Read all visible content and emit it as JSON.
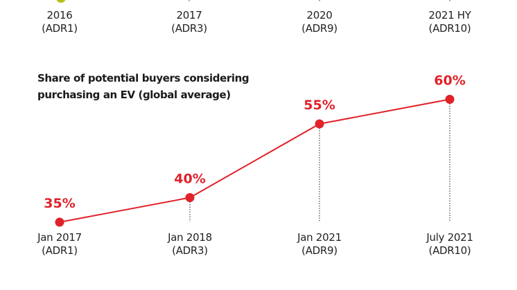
{
  "top_chart_partial": {
    "dot_color": "#b5c11a",
    "categories": [
      {
        "year": "2016",
        "survey": "(ADR1)"
      },
      {
        "year": "2017",
        "survey": "(ADR3)"
      },
      {
        "year": "2020",
        "survey": "(ADR9)"
      },
      {
        "year": "2021 HY",
        "survey": "(ADR10)"
      }
    ]
  },
  "chart_data": {
    "type": "line",
    "title_lines": [
      "Share of potential buyers considering",
      "purchasing an EV (global average)"
    ],
    "title": "Share of potential buyers considering purchasing an EV (global average)",
    "categories": [
      {
        "date": "Jan 2017",
        "survey": "(ADR1)"
      },
      {
        "date": "Jan 2018",
        "survey": "(ADR3)"
      },
      {
        "date": "Jan 2021",
        "survey": "(ADR9)"
      },
      {
        "date": "July 2021",
        "survey": "(ADR10)"
      }
    ],
    "series": [
      {
        "name": "Share of potential buyers considering purchasing an EV",
        "values": [
          35,
          40,
          55,
          60
        ],
        "labels": [
          "35%",
          "40%",
          "55%",
          "60%"
        ],
        "color": "#e0222a"
      }
    ],
    "xlabel": "",
    "ylabel": "",
    "unit": "%",
    "grid": false,
    "legend": "none"
  }
}
